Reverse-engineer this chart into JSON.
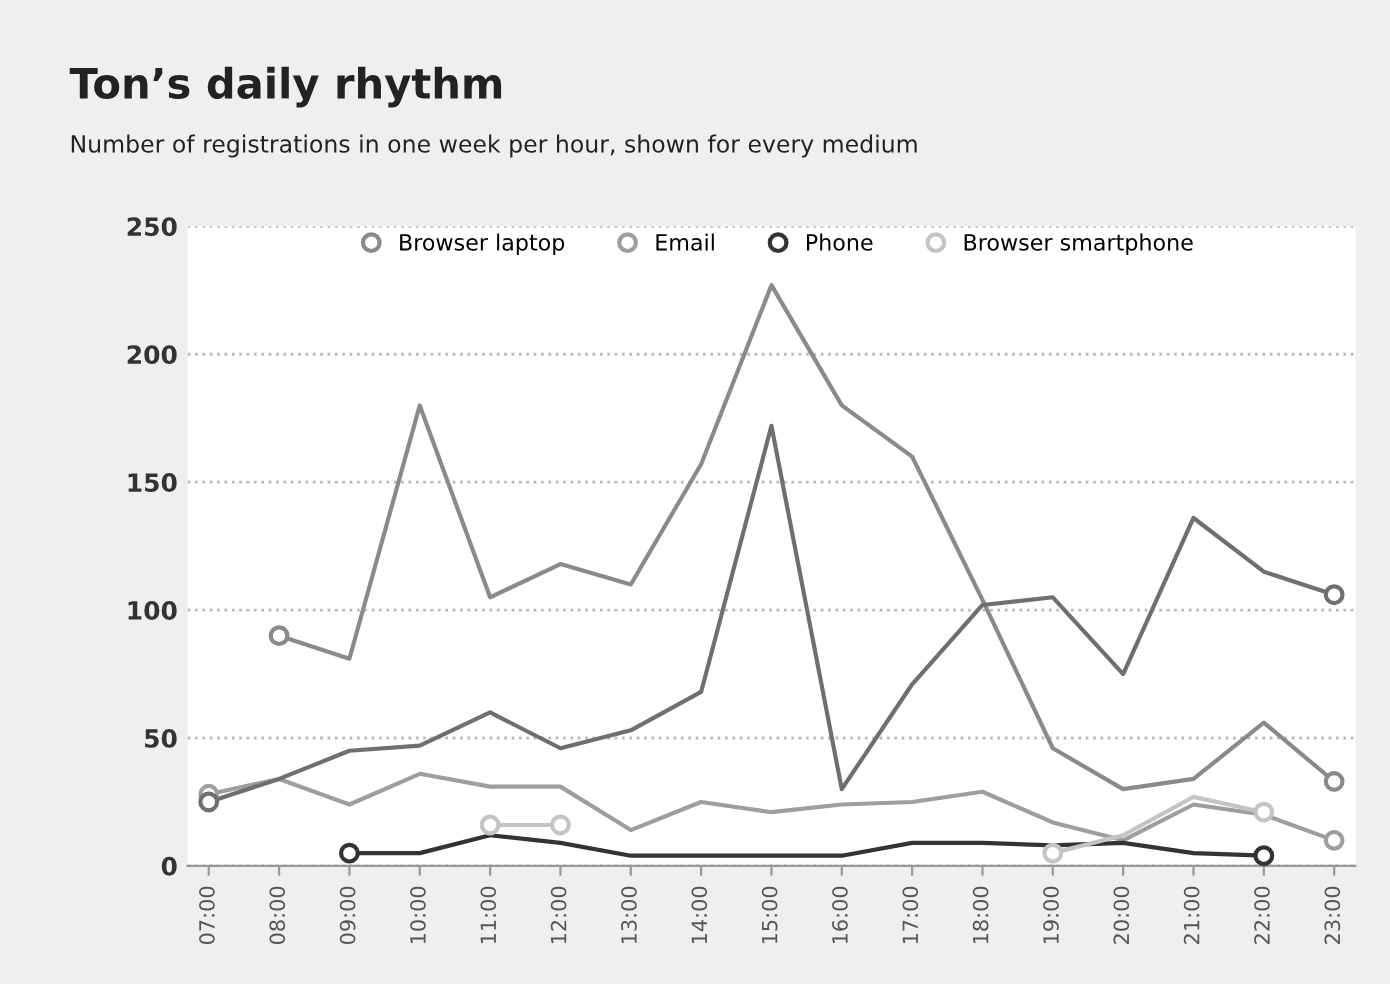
{
  "chart_data": {
    "type": "line",
    "title": "Ton’s daily rhythm",
    "subtitle": "Number of registrations in one week per hour, shown for every medium",
    "categories": [
      "07:00",
      "08:00",
      "09:00",
      "10:00",
      "11:00",
      "12:00",
      "13:00",
      "14:00",
      "15:00",
      "16:00",
      "17:00",
      "18:00",
      "19:00",
      "20:00",
      "21:00",
      "22:00",
      "23:00"
    ],
    "series": [
      {
        "name": "Browser laptop",
        "color": "#8a8a8a",
        "values": [
          null,
          90,
          81,
          180,
          105,
          118,
          110,
          157,
          227,
          180,
          160,
          104,
          46,
          30,
          34,
          56,
          33
        ]
      },
      {
        "name": "Email",
        "color": "#9e9e9e",
        "values": [
          28,
          34,
          24,
          36,
          31,
          31,
          14,
          25,
          21,
          24,
          25,
          29,
          17,
          10,
          24,
          20,
          10
        ]
      },
      {
        "name": "Phone",
        "color": "#333333",
        "values": [
          null,
          null,
          5,
          5,
          12,
          9,
          4,
          4,
          4,
          4,
          9,
          9,
          8,
          9,
          5,
          4,
          null
        ]
      },
      {
        "name": "Browser smartphone",
        "color": "#c4c4c4",
        "values": [
          null,
          null,
          null,
          null,
          16,
          16,
          null,
          null,
          null,
          null,
          null,
          null,
          5,
          12,
          27,
          21,
          null
        ]
      },
      {
        "color": "#6f6f6f",
        "values": [
          25,
          34,
          45,
          47,
          60,
          46,
          53,
          68,
          172,
          30,
          71,
          102,
          105,
          75,
          136,
          115,
          106
        ]
      }
    ],
    "ylim": [
      0,
      250
    ],
    "yticks": [
      0,
      50,
      100,
      150,
      200,
      250
    ],
    "grid": "y",
    "legend": "top"
  }
}
